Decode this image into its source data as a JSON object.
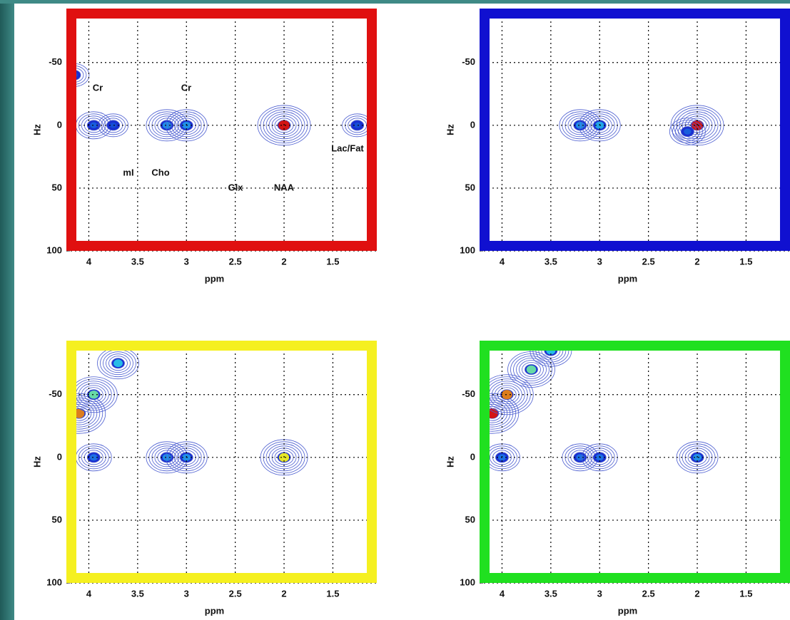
{
  "chart_data": [
    {
      "type": "contour",
      "color": "#e01010",
      "xlabel": "ppm",
      "ylabel": "Hz",
      "xlim": [
        4.23,
        1.05
      ],
      "ylim": [
        -93,
        100
      ],
      "xticks": [
        4,
        3.5,
        3,
        2.5,
        2,
        1.5
      ],
      "yticks": [
        -50,
        0,
        50,
        100
      ],
      "grid": true,
      "annotations": [
        "Cr",
        "Cr",
        "mI",
        "Cho",
        "Glx",
        "NAA",
        "Lac/Fat"
      ],
      "peaks": {
        "x": [
          3.95,
          3.75,
          3.2,
          3.0,
          2.0,
          1.25,
          4.15
        ],
        "y": [
          0,
          0,
          0,
          0,
          0,
          0,
          -40
        ],
        "intensity": [
          0.3,
          0.2,
          0.5,
          0.5,
          1.0,
          0.2,
          0.2
        ]
      }
    },
    {
      "type": "contour",
      "color": "#1010d0",
      "xlabel": "ppm",
      "ylabel": "Hz",
      "xlim": [
        4.23,
        1.05
      ],
      "ylim": [
        -93,
        100
      ],
      "xticks": [
        4,
        3.5,
        3,
        2.5,
        2,
        1.5
      ],
      "yticks": [
        -50,
        0,
        50,
        100
      ],
      "grid": true,
      "peaks": {
        "x": [
          3.2,
          3.0,
          2.0,
          2.1
        ],
        "y": [
          0,
          0,
          0,
          5
        ],
        "intensity": [
          0.5,
          0.55,
          1.0,
          0.3
        ]
      }
    },
    {
      "type": "contour",
      "color": "#f5f020",
      "xlabel": "ppm",
      "ylabel": "Hz",
      "xlim": [
        4.23,
        1.05
      ],
      "ylim": [
        -93,
        100
      ],
      "xticks": [
        4,
        3.5,
        3,
        2.5,
        2,
        1.5
      ],
      "yticks": [
        -50,
        0,
        50,
        100
      ],
      "grid": true,
      "peaks": {
        "x": [
          4.1,
          3.95,
          3.7,
          3.95,
          3.2,
          3.0,
          2.0
        ],
        "y": [
          -35,
          -50,
          -75,
          0,
          0,
          0,
          0
        ],
        "intensity": [
          0.9,
          0.7,
          0.6,
          0.4,
          0.5,
          0.5,
          0.8
        ]
      }
    },
    {
      "type": "contour",
      "color": "#20e020",
      "xlabel": "ppm",
      "ylabel": "Hz",
      "xlim": [
        4.23,
        1.05
      ],
      "ylim": [
        -93,
        100
      ],
      "xticks": [
        4,
        3.5,
        3,
        2.5,
        2,
        1.5
      ],
      "yticks": [
        -50,
        0,
        50,
        100
      ],
      "grid": true,
      "peaks": {
        "x": [
          4.1,
          3.95,
          3.7,
          3.5,
          4.0,
          3.2,
          3.0,
          2.0
        ],
        "y": [
          -35,
          -50,
          -70,
          -85,
          0,
          0,
          0,
          0
        ],
        "intensity": [
          1.0,
          0.9,
          0.7,
          0.6,
          0.4,
          0.4,
          0.4,
          0.5
        ]
      }
    }
  ]
}
